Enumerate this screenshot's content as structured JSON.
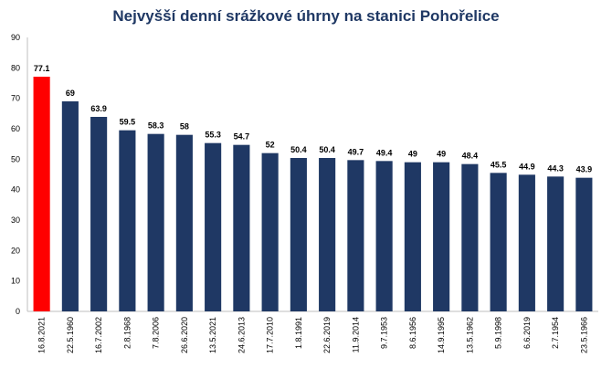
{
  "chart_data": {
    "type": "bar",
    "title": "Nejvyšší denní srážkové úhrny na stanici Pohořelice",
    "xlabel": "",
    "ylabel": "",
    "ylim": [
      0,
      90
    ],
    "yticks": [
      0,
      10,
      20,
      30,
      40,
      50,
      60,
      70,
      80,
      90
    ],
    "grid": false,
    "legend": "none",
    "categories": [
      "16.8.2021",
      "22.5.1960",
      "16.7.2002",
      "2.8.1968",
      "7.8.2006",
      "26.6.2020",
      "13.5.2021",
      "24.6.2013",
      "17.7.2010",
      "1.8.1991",
      "22.6.2019",
      "11.9.2014",
      "9.7.1953",
      "8.6.1956",
      "14.9.1995",
      "13.5.1962",
      "5.9.1998",
      "6.6.2019",
      "2.7.1954",
      "23.5.1966"
    ],
    "values": [
      77.1,
      69,
      63.9,
      59.5,
      58.3,
      58,
      55.3,
      54.7,
      52,
      50.4,
      50.4,
      49.7,
      49.4,
      49,
      49,
      48.4,
      45.5,
      44.9,
      44.3,
      43.9
    ],
    "value_labels": [
      "77.1",
      "69",
      "63.9",
      "59.5",
      "58.3",
      "58",
      "55.3",
      "54.7",
      "52",
      "50.4",
      "50.4",
      "49.7",
      "49.4",
      "49",
      "49",
      "48.4",
      "45.5",
      "44.9",
      "44.3",
      "43.9"
    ],
    "colors": {
      "highlight": "#ff0000",
      "bar": "#1f3864",
      "title": "#1f3864",
      "axis": "#bfbfbf"
    },
    "highlight_index": 0
  }
}
